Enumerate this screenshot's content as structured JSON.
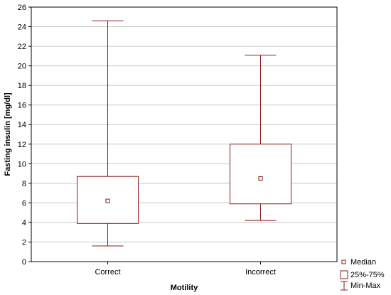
{
  "chart_data": {
    "type": "box",
    "xlabel": "Motility",
    "ylabel": "Fasting insulin [mg/dl]",
    "ylim": [
      0,
      26
    ],
    "yticks": [
      0,
      2,
      4,
      6,
      8,
      10,
      12,
      14,
      16,
      18,
      20,
      22,
      24,
      26
    ],
    "grid": true,
    "categories": [
      "Correct",
      "Incorrect"
    ],
    "boxes": [
      {
        "category": "Correct",
        "min": 1.6,
        "q1": 3.9,
        "median": 6.2,
        "q3": 8.7,
        "max": 24.6
      },
      {
        "category": "Incorrect",
        "min": 4.2,
        "q1": 5.9,
        "median": 8.5,
        "q3": 12.0,
        "max": 21.1
      }
    ],
    "legend": {
      "position": "bottom-right",
      "entries": [
        "Median",
        "25%-75%",
        "Min-Max"
      ]
    },
    "colors": {
      "box": "#8b1a1a",
      "grid": "#c8c8c8",
      "axis": "#000000"
    }
  }
}
